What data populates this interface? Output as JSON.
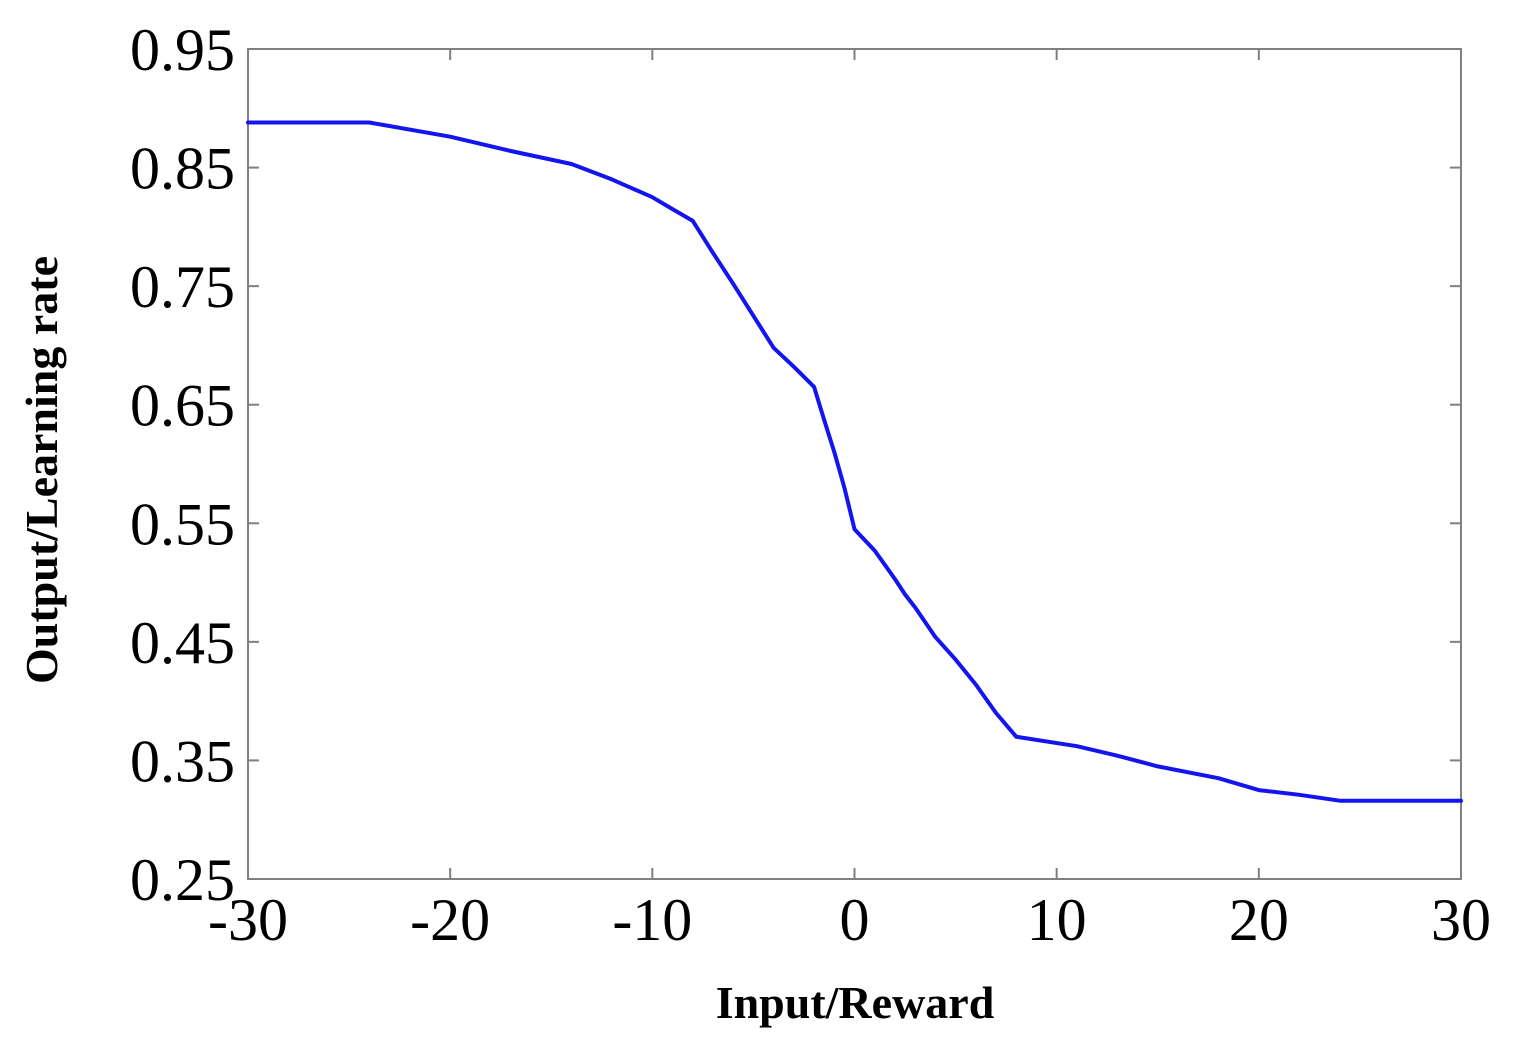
{
  "chart_data": {
    "type": "line",
    "title": "",
    "xlabel": "Input/Reward",
    "ylabel": "Output/Learning rate",
    "xlim": [
      -30,
      30
    ],
    "ylim": [
      0.25,
      0.95
    ],
    "xticks": [
      "-30",
      "-20",
      "-10",
      "0",
      "10",
      "20",
      "30"
    ],
    "yticks": [
      "0.95",
      "0.85",
      "0.75",
      "0.65",
      "0.55",
      "0.45",
      "0.35",
      "0.25"
    ],
    "grid": false,
    "colors": {
      "line": "#1414f0",
      "axes": "#808080",
      "text": "#000000"
    },
    "series": [
      {
        "x": [
          -30,
          -24,
          -20,
          -17,
          -14,
          -12,
          -10,
          -9,
          -8,
          -7,
          -6,
          -5,
          -4,
          -3,
          -2,
          -1.5,
          -1,
          -0.5,
          0,
          1,
          2,
          2.5,
          3,
          4,
          5,
          6,
          7,
          8,
          11,
          13,
          15,
          18,
          20,
          22,
          24,
          27,
          30
        ],
        "y": [
          0.888,
          0.888,
          0.876,
          0.864,
          0.853,
          0.84,
          0.825,
          0.815,
          0.805,
          0.778,
          0.752,
          0.725,
          0.698,
          0.682,
          0.665,
          0.637,
          0.61,
          0.58,
          0.545,
          0.527,
          0.503,
          0.49,
          0.479,
          0.454,
          0.435,
          0.414,
          0.39,
          0.37,
          0.362,
          0.354,
          0.345,
          0.335,
          0.325,
          0.321,
          0.316,
          0.316,
          0.316
        ]
      }
    ]
  }
}
